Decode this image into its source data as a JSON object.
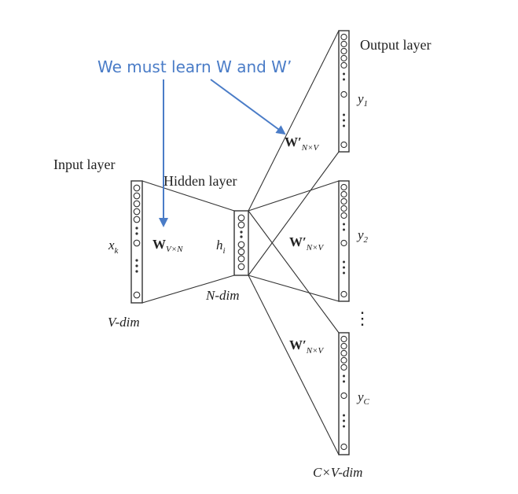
{
  "callout": "We must learn W and W’",
  "labels": {
    "output_layer": "Output layer",
    "input_layer": "Input layer",
    "hidden_layer": "Hidden layer",
    "input_dim": "V-dim",
    "hidden_dim": "N-dim",
    "output_dim": "C×V-dim",
    "input_var": "x",
    "input_var_sub": "k",
    "hidden_var": "h",
    "hidden_var_sub": "i",
    "w_main": "W",
    "w_sub": "V×N",
    "wprime_main": "W′",
    "wprime_sub": "N×V",
    "y1_main": "y",
    "y1_sub": "1",
    "y2_main": "y",
    "y2_sub": "2",
    "yc_main": "y",
    "yc_sub": "C",
    "vertical_ellipsis": "⋮"
  },
  "colors": {
    "callout": "#4a7cc7",
    "lines": "#333333",
    "text": "#222222"
  }
}
